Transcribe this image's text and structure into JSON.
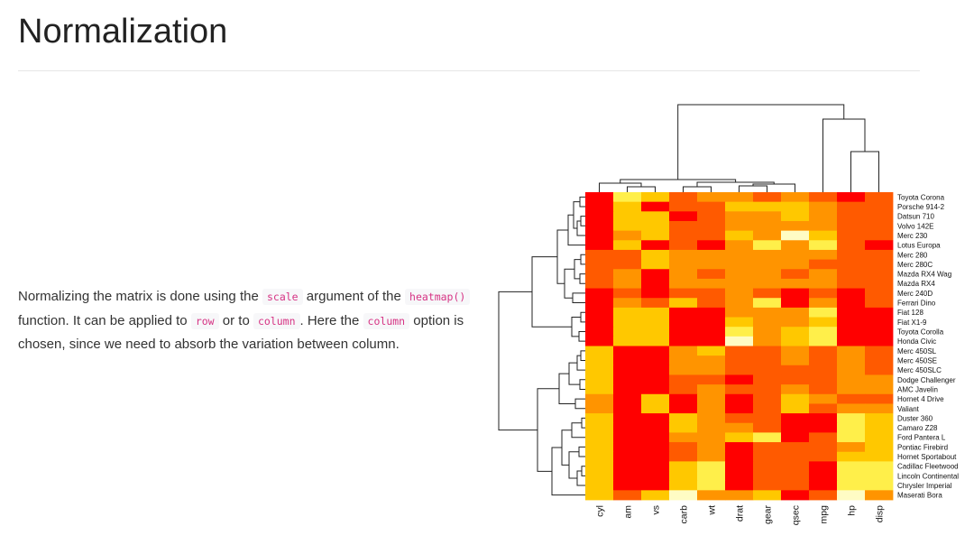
{
  "page": {
    "title": "Normalization",
    "para": {
      "t1": "Normalizing the matrix is done using the",
      "c1": "scale",
      "t2": "argument of the",
      "c2": "heatmap()",
      "t3": "function. It can be applied to",
      "c3": "row",
      "t4": "or to",
      "c4": "column",
      "t5": ". Here the",
      "c5": "column",
      "t6": "option is chosen, since we need to absorb the variation between column."
    }
  },
  "chart_data": {
    "type": "heatmap",
    "scale": "column",
    "columns": [
      "cyl",
      "am",
      "vs",
      "carb",
      "wt",
      "drat",
      "gear",
      "qsec",
      "mpg",
      "hp",
      "disp"
    ],
    "rows": [
      "Toyota Corona",
      "Porsche 914-2",
      "Datsun 710",
      "Volvo 142E",
      "Merc 230",
      "Lotus Europa",
      "Merc 280",
      "Merc 280C",
      "Mazda RX4 Wag",
      "Mazda RX4",
      "Merc 240D",
      "Ferrari Dino",
      "Fiat 128",
      "Fiat X1-9",
      "Toyota Corolla",
      "Honda Civic",
      "Merc 450SL",
      "Merc 450SE",
      "Merc 450SLC",
      "Dodge Challenger",
      "AMC Javelin",
      "Hornet 4 Drive",
      "Valiant",
      "Duster 360",
      "Camaro Z28",
      "Ford Pantera L",
      "Pontiac Firebird",
      "Hornet Sportabout",
      "Cadillac Fleetwood",
      "Lincoln Continental",
      "Chrysler Imperial",
      "Maserati Bora"
    ],
    "color_scale": [
      "#ff0000",
      "#ff5a00",
      "#ff9400",
      "#ffc800",
      "#ffef4a",
      "#fffcc4"
    ],
    "values": [
      [
        0,
        4,
        3,
        1,
        2,
        2,
        1,
        2,
        1,
        0,
        1
      ],
      [
        0,
        3,
        0,
        1,
        1,
        3,
        3,
        3,
        2,
        1,
        1
      ],
      [
        0,
        3,
        3,
        0,
        1,
        2,
        2,
        3,
        2,
        1,
        1
      ],
      [
        0,
        3,
        3,
        1,
        1,
        2,
        2,
        2,
        2,
        1,
        1
      ],
      [
        0,
        2,
        3,
        1,
        1,
        3,
        2,
        5,
        3,
        1,
        1
      ],
      [
        0,
        3,
        0,
        1,
        0,
        2,
        4,
        2,
        4,
        1,
        0
      ],
      [
        1,
        1,
        3,
        2,
        2,
        2,
        2,
        2,
        2,
        1,
        1
      ],
      [
        1,
        1,
        3,
        2,
        2,
        2,
        2,
        2,
        1,
        1,
        1
      ],
      [
        1,
        2,
        0,
        2,
        1,
        2,
        2,
        1,
        2,
        1,
        1
      ],
      [
        1,
        2,
        0,
        2,
        2,
        2,
        2,
        2,
        2,
        1,
        1
      ],
      [
        0,
        1,
        0,
        1,
        1,
        2,
        1,
        0,
        1,
        0,
        1
      ],
      [
        0,
        2,
        1,
        3,
        1,
        2,
        4,
        0,
        2,
        0,
        1
      ],
      [
        0,
        3,
        3,
        0,
        0,
        2,
        2,
        2,
        4,
        0,
        0
      ],
      [
        0,
        3,
        3,
        0,
        0,
        3,
        2,
        2,
        3,
        0,
        0
      ],
      [
        0,
        3,
        3,
        0,
        0,
        4,
        2,
        3,
        4,
        0,
        0
      ],
      [
        0,
        3,
        3,
        0,
        0,
        5,
        2,
        3,
        4,
        0,
        0
      ],
      [
        3,
        0,
        0,
        2,
        3,
        1,
        1,
        2,
        1,
        2,
        1
      ],
      [
        3,
        0,
        0,
        2,
        2,
        1,
        1,
        2,
        1,
        2,
        1
      ],
      [
        3,
        0,
        0,
        2,
        2,
        1,
        1,
        1,
        1,
        2,
        1
      ],
      [
        3,
        0,
        0,
        1,
        1,
        0,
        1,
        1,
        1,
        2,
        2
      ],
      [
        3,
        0,
        0,
        1,
        2,
        1,
        1,
        2,
        1,
        2,
        2
      ],
      [
        2,
        0,
        3,
        0,
        2,
        0,
        1,
        3,
        2,
        1,
        1
      ],
      [
        2,
        0,
        3,
        0,
        2,
        0,
        1,
        3,
        1,
        2,
        2
      ],
      [
        3,
        0,
        0,
        3,
        2,
        1,
        1,
        0,
        0,
        4,
        3
      ],
      [
        3,
        0,
        0,
        3,
        2,
        2,
        1,
        0,
        0,
        4,
        3
      ],
      [
        3,
        0,
        0,
        2,
        2,
        3,
        4,
        0,
        1,
        4,
        3
      ],
      [
        3,
        0,
        0,
        1,
        2,
        0,
        1,
        1,
        1,
        2,
        3
      ],
      [
        3,
        0,
        0,
        1,
        2,
        0,
        1,
        1,
        1,
        3,
        3
      ],
      [
        3,
        0,
        0,
        3,
        4,
        0,
        1,
        1,
        0,
        4,
        4
      ],
      [
        3,
        0,
        0,
        3,
        4,
        0,
        1,
        1,
        0,
        4,
        4
      ],
      [
        3,
        0,
        0,
        3,
        4,
        0,
        1,
        1,
        0,
        4,
        4
      ],
      [
        3,
        1,
        3,
        5,
        2,
        2,
        3,
        0,
        1,
        5,
        2
      ]
    ]
  }
}
